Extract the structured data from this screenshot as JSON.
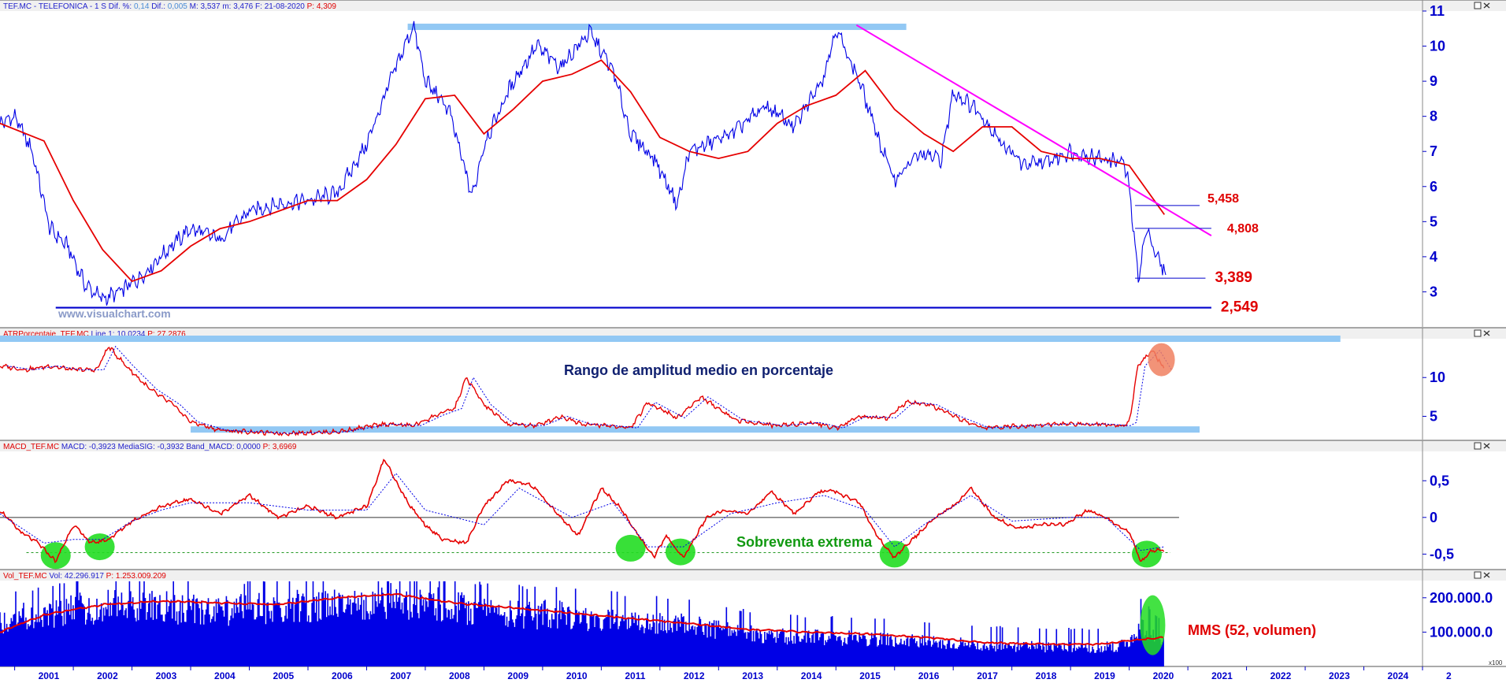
{
  "panels": {
    "price": {
      "header": {
        "symbol": "TEF.MC - TELEFONICA",
        "tf": "- 1 S",
        "dif_pct_label": "Dif. %:",
        "dif_pct": "0,14",
        "dif_label": "Dif.:",
        "dif": "0,005",
        "max_label": "M:",
        "max": "3,537",
        "min_label": "m:",
        "min": "3,476",
        "date_label": "F:",
        "date": "21-08-2020",
        "p_label": "P:",
        "p": "4,309"
      },
      "watermark": "www.visualchart.com",
      "y_ticks": [
        "3",
        "4",
        "5",
        "6",
        "7",
        "8",
        "9",
        "10",
        "11"
      ],
      "y_edge_top": "11",
      "y_edge_bottom": "2",
      "levels": [
        {
          "label": "5,458"
        },
        {
          "label": "4,808"
        },
        {
          "label": "3,389"
        },
        {
          "label": "2,549"
        }
      ]
    },
    "atr": {
      "header": {
        "name": "ATRPorcentaje_TEF.MC",
        "line_label": "Line 1:",
        "line": "10,0234",
        "p_label": "P:",
        "p": "27,2876"
      },
      "y_ticks": [
        "5",
        "10"
      ],
      "y_edge_top": "15",
      "annotation": "Rango de amplitud medio en porcentaje"
    },
    "macd": {
      "header": {
        "name": "MACD_TEF.MC",
        "macd_label": "MACD:",
        "macd": "-0,3923",
        "sig_label": "MediaSIG:",
        "sig": "-0,3932",
        "band_label": "Band_MACD:",
        "band": "0,0000",
        "p_label": "P:",
        "p": "3,6969"
      },
      "y_ticks": [
        "-0,5",
        "0",
        "0,5"
      ],
      "annotation": "Sobreventa extrema"
    },
    "vol": {
      "header": {
        "name": "Vol_TEF.MC",
        "vol_label": "Vol:",
        "vol": "42.296.917",
        "p_label": "P:",
        "p": "1.253.009.209"
      },
      "y_ticks": [
        "100.000.0",
        "200.000.0"
      ],
      "scale_tag": "x100",
      "annotation": "MMS (52, volumen)"
    }
  },
  "x_axis_years": [
    "2001",
    "2002",
    "2003",
    "2004",
    "2005",
    "2006",
    "2007",
    "2008",
    "2009",
    "2010",
    "2011",
    "2012",
    "2013",
    "2014",
    "2015",
    "2016",
    "2017",
    "2018",
    "2019",
    "2020",
    "2021",
    "2022",
    "2023",
    "2024",
    "2"
  ],
  "colors": {
    "price": "#0000e6",
    "ma": "#e60000",
    "trend": "#ff00ff",
    "highlight": "#92c8f4",
    "oversold": "#22dd22",
    "atr_circle": "#f08060",
    "axis": "#0000cc",
    "header_bg": "#f0f0f0",
    "header_red": "#e00000",
    "header_blue": "#2222cc"
  },
  "chart_data": [
    {
      "type": "line",
      "name": "price",
      "series": [
        {
          "name": "TEF.MC",
          "x": [
            2000.75,
            2001.0,
            2001.3,
            2001.6,
            2001.9,
            2002.2,
            2002.5,
            2002.8,
            2003.2,
            2003.6,
            2004.0,
            2004.5,
            2005.0,
            2005.5,
            2006.0,
            2006.5,
            2007.0,
            2007.4,
            2007.8,
            2008.0,
            2008.4,
            2008.8,
            2009.0,
            2009.5,
            2009.9,
            2010.3,
            2010.8,
            2011.2,
            2011.5,
            2011.9,
            2012.3,
            2012.5,
            2012.8,
            2013.3,
            2013.8,
            2014.3,
            2014.8,
            2015.0,
            2015.4,
            2015.8,
            2016.0,
            2016.4,
            2016.8,
            2017.0,
            2017.4,
            2017.8,
            2018.2,
            2018.6,
            2019.0,
            2019.5,
            2019.9,
            2020.0,
            2020.15,
            2020.3,
            2020.5,
            2020.63
          ],
          "y": [
            7.8,
            8.0,
            7.0,
            4.8,
            4.3,
            3.2,
            2.8,
            3.0,
            3.5,
            4.2,
            4.8,
            4.5,
            5.3,
            5.5,
            5.6,
            5.8,
            7.2,
            9.0,
            10.6,
            9.0,
            8.2,
            5.7,
            7.2,
            9.0,
            10.0,
            9.4,
            10.4,
            9.3,
            7.5,
            6.8,
            5.5,
            7.0,
            7.2,
            7.6,
            8.3,
            7.7,
            9.2,
            10.5,
            9.0,
            7.0,
            6.2,
            6.9,
            6.8,
            8.7,
            8.2,
            7.3,
            6.6,
            6.7,
            7.0,
            6.8,
            6.7,
            6.0,
            3.4,
            4.8,
            3.9,
            3.5
          ]
        },
        {
          "name": "MA",
          "x": [
            2000.75,
            2001.5,
            2002.0,
            2002.5,
            2003.0,
            2003.5,
            2004.0,
            2004.5,
            2005.0,
            2005.5,
            2006.0,
            2006.5,
            2007.0,
            2007.5,
            2008.0,
            2008.5,
            2009.0,
            2009.5,
            2010.0,
            2010.5,
            2011.0,
            2011.5,
            2012.0,
            2012.5,
            2013.0,
            2013.5,
            2014.0,
            2014.5,
            2015.0,
            2015.5,
            2016.0,
            2016.5,
            2017.0,
            2017.5,
            2018.0,
            2018.5,
            2019.0,
            2019.5,
            2020.0,
            2020.6
          ],
          "y": [
            7.8,
            7.3,
            5.6,
            4.2,
            3.3,
            3.6,
            4.3,
            4.8,
            5.0,
            5.3,
            5.6,
            5.6,
            6.2,
            7.2,
            8.5,
            8.6,
            7.5,
            8.2,
            9.0,
            9.2,
            9.6,
            8.7,
            7.4,
            7.0,
            6.8,
            7.0,
            7.8,
            8.3,
            8.6,
            9.3,
            8.2,
            7.5,
            7.0,
            7.7,
            7.7,
            7.0,
            6.8,
            6.8,
            6.6,
            5.2
          ]
        }
      ],
      "trendline": {
        "x": [
          2015.35,
          2021.4
        ],
        "y": [
          10.6,
          4.6
        ]
      },
      "levels": [
        {
          "value": 5.458,
          "x": [
            2020.1,
            2021.2
          ]
        },
        {
          "value": 4.808,
          "x": [
            2020.1,
            2021.4
          ]
        },
        {
          "value": 3.389,
          "x": [
            2020.1,
            2021.3
          ]
        },
        {
          "value": 2.549,
          "x": [
            2001.7,
            2021.4
          ]
        }
      ],
      "highlight_band": {
        "x": [
          2007.7,
          2016.2
        ],
        "y": 10.55
      },
      "ylim": [
        2,
        11
      ],
      "xlim": [
        2000.75,
        2025.0
      ],
      "grid": false
    },
    {
      "type": "line",
      "name": "atr",
      "series": [
        {
          "name": "ATRPorcentaje",
          "x": [
            2000.75,
            2001.2,
            2001.6,
            2002.0,
            2002.4,
            2002.6,
            2002.9,
            2003.3,
            2003.7,
            2004.0,
            2004.5,
            2005.5,
            2006.5,
            2007.3,
            2007.8,
            2008.2,
            2008.5,
            2008.7,
            2009.0,
            2009.4,
            2009.9,
            2010.3,
            2010.7,
            2011.1,
            2011.5,
            2011.8,
            2012.3,
            2012.7,
            2013.3,
            2014.0,
            2014.6,
            2015.0,
            2015.4,
            2015.9,
            2016.2,
            2016.6,
            2017.0,
            2017.5,
            2018.2,
            2018.8,
            2019.5,
            2019.9,
            2020.0,
            2020.15,
            2020.4,
            2020.6
          ],
          "y": [
            11.5,
            11.0,
            11.5,
            11.0,
            11.0,
            14.0,
            11.5,
            8.5,
            6.5,
            4.3,
            3.2,
            2.8,
            3.0,
            4.0,
            3.8,
            5.2,
            6.0,
            10.0,
            6.5,
            4.0,
            3.8,
            5.0,
            4.0,
            3.8,
            3.5,
            6.8,
            4.8,
            7.5,
            4.5,
            3.8,
            4.2,
            3.5,
            5.0,
            4.8,
            6.8,
            6.5,
            5.0,
            3.5,
            3.8,
            4.0,
            4.0,
            3.8,
            4.2,
            11.5,
            13.5,
            11.0
          ]
        }
      ],
      "highlight_bands": [
        {
          "x": [
            2000.75,
            2023.6
          ],
          "y": 15.0
        },
        {
          "x": [
            2004.0,
            2021.2
          ],
          "y": 3.3
        }
      ],
      "circle": {
        "x": 2020.55,
        "y": 12.3
      },
      "ylim": [
        2,
        15
      ],
      "grid": false
    },
    {
      "type": "line",
      "name": "macd",
      "series": [
        {
          "name": "MACD",
          "x": [
            2000.75,
            2001.1,
            2001.4,
            2001.7,
            2002.0,
            2002.3,
            2002.6,
            2003.0,
            2003.5,
            2004.0,
            2004.5,
            2005.0,
            2005.5,
            2006.0,
            2006.5,
            2007.0,
            2007.3,
            2007.7,
            2008.0,
            2008.3,
            2008.7,
            2009.0,
            2009.4,
            2009.8,
            2010.2,
            2010.6,
            2011.0,
            2011.3,
            2011.6,
            2011.9,
            2012.1,
            2012.4,
            2012.8,
            2013.1,
            2013.5,
            2013.9,
            2014.3,
            2014.7,
            2015.0,
            2015.4,
            2015.7,
            2016.0,
            2016.3,
            2016.7,
            2017.0,
            2017.3,
            2017.7,
            2018.1,
            2018.5,
            2018.9,
            2019.3,
            2019.7,
            2020.0,
            2020.2,
            2020.4,
            2020.6
          ],
          "y": [
            0.1,
            -0.2,
            -0.35,
            -0.6,
            -0.1,
            -0.35,
            -0.3,
            -0.05,
            0.15,
            0.25,
            0.05,
            0.3,
            0.0,
            0.15,
            0.0,
            0.15,
            0.8,
            0.2,
            -0.1,
            -0.3,
            -0.35,
            0.15,
            0.5,
            0.45,
            0.1,
            -0.25,
            0.4,
            0.15,
            -0.2,
            -0.55,
            -0.25,
            -0.55,
            0.0,
            0.1,
            0.05,
            0.35,
            0.05,
            0.35,
            0.35,
            0.2,
            -0.25,
            -0.55,
            -0.3,
            0.0,
            0.15,
            0.4,
            0.0,
            -0.15,
            -0.1,
            -0.1,
            0.1,
            -0.05,
            -0.2,
            -0.6,
            -0.45,
            -0.45
          ]
        },
        {
          "name": "MediaSIG",
          "x": [
            2000.75,
            2001.5,
            2002.0,
            2002.5,
            2003.0,
            2003.5,
            2004.0,
            2005.0,
            2006.0,
            2007.0,
            2007.5,
            2008.0,
            2009.0,
            2009.6,
            2010.5,
            2011.2,
            2011.8,
            2012.4,
            2013.2,
            2014.0,
            2014.8,
            2015.5,
            2016.0,
            2016.5,
            2017.3,
            2018.0,
            2019.0,
            2019.6,
            2020.2,
            2020.6
          ],
          "y": [
            0.05,
            -0.35,
            -0.3,
            -0.3,
            -0.05,
            0.1,
            0.2,
            0.2,
            0.1,
            0.1,
            0.6,
            0.1,
            -0.1,
            0.4,
            0.0,
            0.2,
            -0.4,
            -0.4,
            0.05,
            0.2,
            0.3,
            0.1,
            -0.4,
            -0.1,
            0.3,
            -0.05,
            0.0,
            0.0,
            -0.45,
            -0.4
          ]
        }
      ],
      "zero_line": 0,
      "oversold_line": -0.48,
      "oversold_points": [
        {
          "x": 2001.7,
          "y": -0.52
        },
        {
          "x": 2002.45,
          "y": -0.4
        },
        {
          "x": 2011.5,
          "y": -0.42
        },
        {
          "x": 2012.35,
          "y": -0.47
        },
        {
          "x": 2016.0,
          "y": -0.5
        },
        {
          "x": 2020.3,
          "y": -0.5
        }
      ],
      "ylim": [
        -0.7,
        0.9
      ],
      "grid": false
    },
    {
      "type": "bar",
      "name": "volume",
      "bar_envelope": {
        "x": [
          2000.75,
          2001.5,
          2002.5,
          2003.5,
          2004.5,
          2005.5,
          2006.5,
          2007.5,
          2008.0,
          2008.5,
          2009.5,
          2010.5,
          2011.5,
          2012.5,
          2013.5,
          2014.5,
          2015.5,
          2016.5,
          2017.5,
          2018.5,
          2019.5,
          2019.95,
          2020.2,
          2020.6
        ],
        "y": [
          170,
          200,
          225,
          225,
          210,
          220,
          240,
          250,
          240,
          220,
          200,
          190,
          175,
          160,
          125,
          110,
          105,
          95,
          80,
          75,
          70,
          80,
          160,
          90
        ]
      },
      "series": [
        {
          "name": "MMS",
          "x": [
            2000.75,
            2001.5,
            2002.5,
            2003.5,
            2004.5,
            2005.5,
            2006.5,
            2007.5,
            2008.5,
            2009.5,
            2010.5,
            2011.5,
            2012.5,
            2013.5,
            2014.5,
            2015.5,
            2016.5,
            2017.5,
            2018.5,
            2019.5,
            2020.0,
            2020.6
          ],
          "y": [
            100,
            150,
            180,
            190,
            185,
            180,
            200,
            210,
            185,
            170,
            155,
            140,
            125,
            108,
            100,
            95,
            85,
            70,
            65,
            65,
            75,
            85
          ]
        }
      ],
      "highlight": {
        "x": 2020.4,
        "y": 120
      },
      "ylim": [
        0,
        250
      ],
      "grid": false
    }
  ]
}
